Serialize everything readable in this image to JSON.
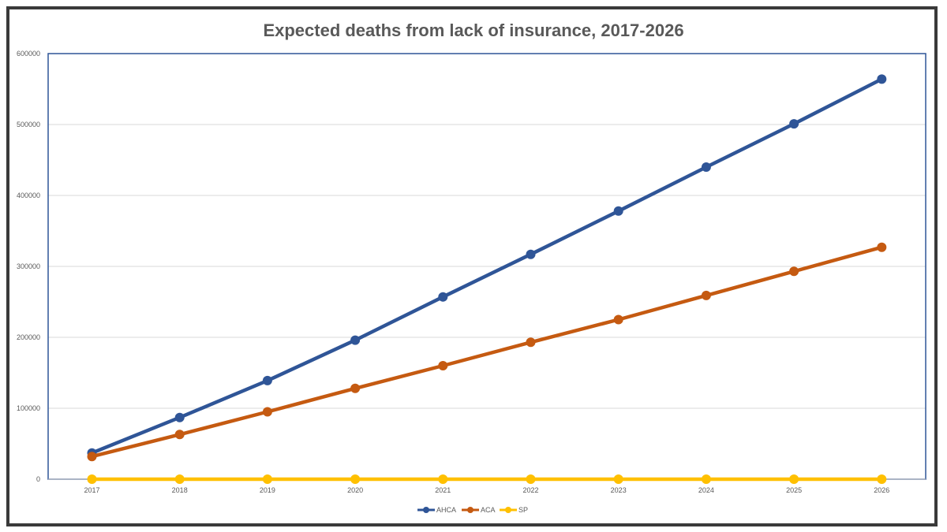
{
  "chart_data": {
    "type": "line",
    "title": "Expected deaths from lack of insurance, 2017-2026",
    "xlabel": "",
    "ylabel": "",
    "categories": [
      "2017",
      "2018",
      "2019",
      "2020",
      "2021",
      "2022",
      "2023",
      "2024",
      "2025",
      "2026"
    ],
    "ylim": [
      0,
      600000
    ],
    "yticks": [
      0,
      100000,
      200000,
      300000,
      400000,
      500000,
      600000
    ],
    "grid": true,
    "legend_position": "bottom",
    "series": [
      {
        "name": "AHCA",
        "color": "#2f5597",
        "values": [
          37000,
          87000,
          139000,
          196000,
          257000,
          317000,
          378000,
          440000,
          501000,
          564000
        ]
      },
      {
        "name": "ACA",
        "color": "#c55a11",
        "values": [
          32000,
          63000,
          95000,
          128000,
          160000,
          193000,
          225000,
          259000,
          293000,
          327000
        ]
      },
      {
        "name": "SP",
        "color": "#ffc000",
        "values": [
          0,
          0,
          0,
          0,
          0,
          0,
          0,
          0,
          0,
          0
        ]
      }
    ]
  }
}
